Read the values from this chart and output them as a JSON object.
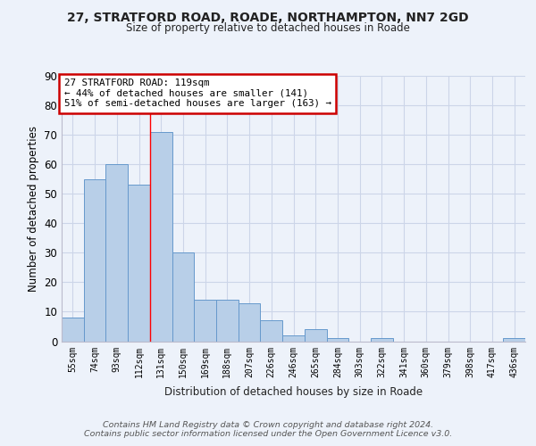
{
  "title1": "27, STRATFORD ROAD, ROADE, NORTHAMPTON, NN7 2GD",
  "title2": "Size of property relative to detached houses in Roade",
  "xlabel": "Distribution of detached houses by size in Roade",
  "ylabel": "Number of detached properties",
  "categories": [
    "55sqm",
    "74sqm",
    "93sqm",
    "112sqm",
    "131sqm",
    "150sqm",
    "169sqm",
    "188sqm",
    "207sqm",
    "226sqm",
    "246sqm",
    "265sqm",
    "284sqm",
    "303sqm",
    "322sqm",
    "341sqm",
    "360sqm",
    "379sqm",
    "398sqm",
    "417sqm",
    "436sqm"
  ],
  "values": [
    8,
    55,
    60,
    53,
    71,
    30,
    14,
    14,
    13,
    7,
    2,
    4,
    1,
    0,
    1,
    0,
    0,
    0,
    0,
    0,
    1
  ],
  "bar_color": "#b8cfe8",
  "bar_edge_color": "#6699cc",
  "grid_color": "#ccd5e8",
  "background_color": "#edf2fa",
  "red_line_x": 3.5,
  "annotation_text": "27 STRATFORD ROAD: 119sqm\n← 44% of detached houses are smaller (141)\n51% of semi-detached houses are larger (163) →",
  "annotation_box_color": "#ffffff",
  "annotation_box_edge": "#cc0000",
  "ylim": [
    0,
    90
  ],
  "yticks": [
    0,
    10,
    20,
    30,
    40,
    50,
    60,
    70,
    80,
    90
  ],
  "footer": "Contains HM Land Registry data © Crown copyright and database right 2024.\nContains public sector information licensed under the Open Government Licence v3.0."
}
